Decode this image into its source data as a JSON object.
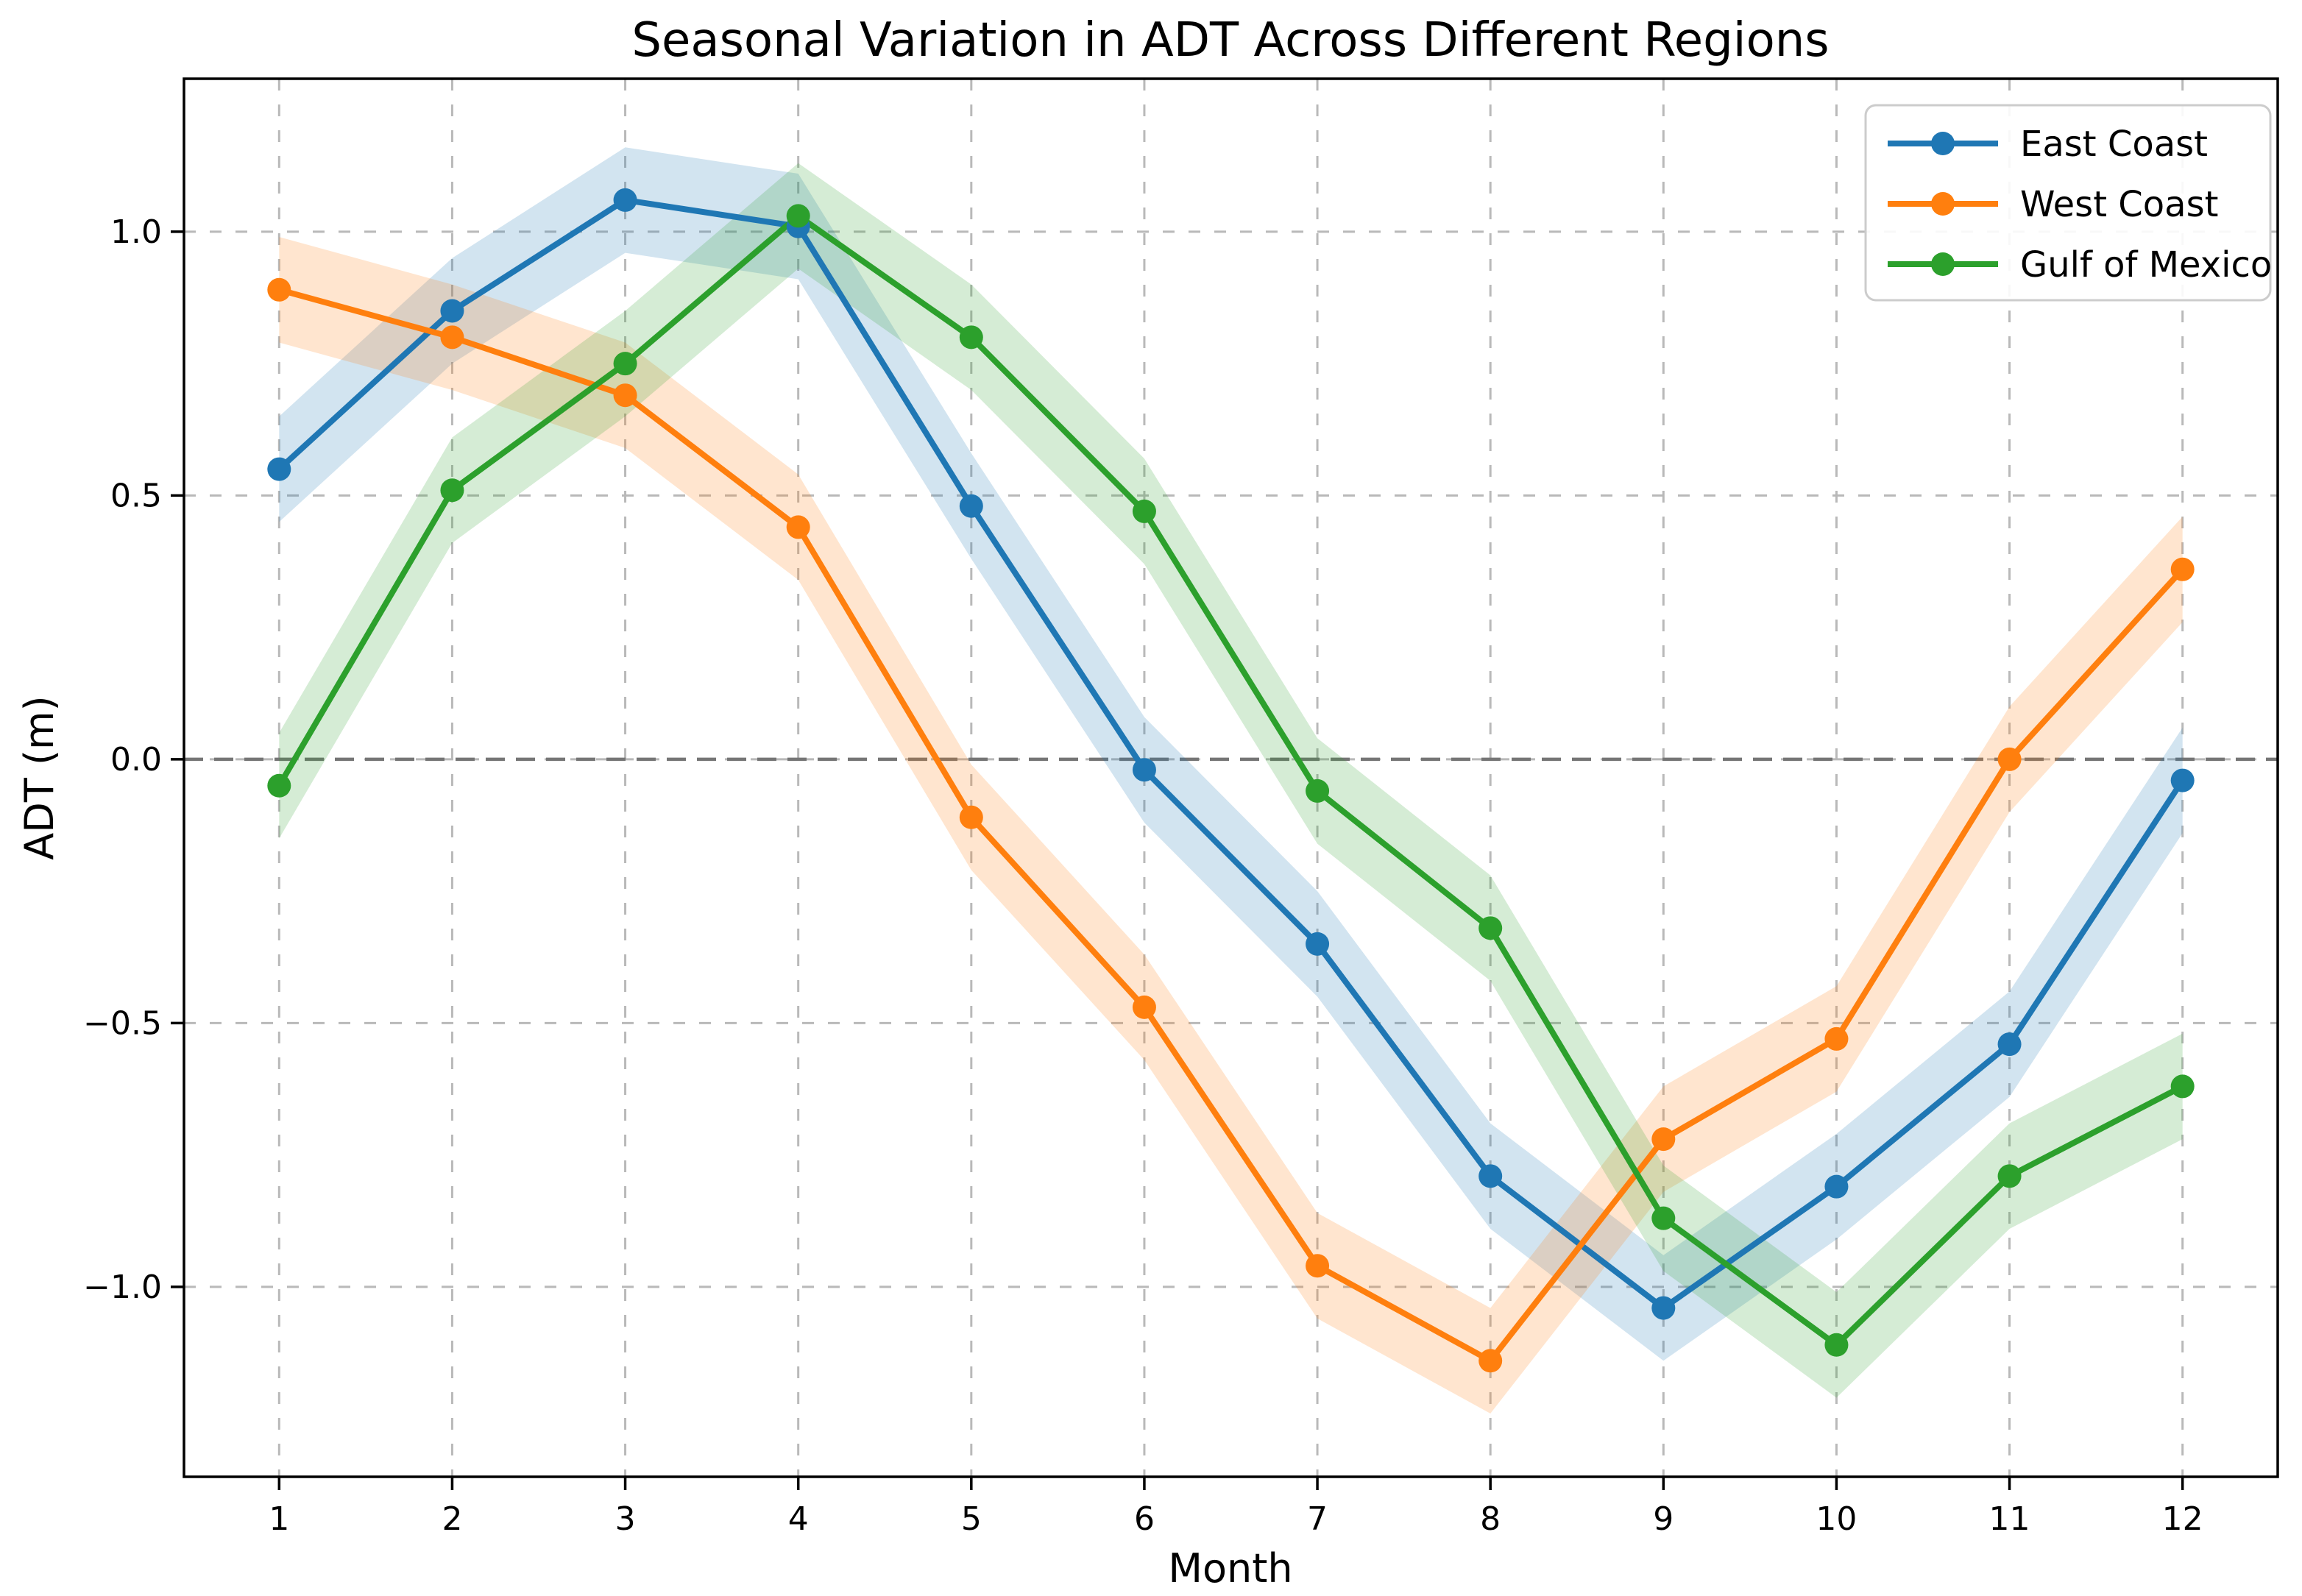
{
  "chart_data": {
    "type": "line",
    "title": "Seasonal Variation in ADT Across Different Regions",
    "xlabel": "Month",
    "ylabel": "ADT (m)",
    "x": [
      1,
      2,
      3,
      4,
      5,
      6,
      7,
      8,
      9,
      10,
      11,
      12
    ],
    "xticks": [
      1,
      2,
      3,
      4,
      5,
      6,
      7,
      8,
      9,
      10,
      11,
      12
    ],
    "yticks": [
      -1.0,
      -0.5,
      0.0,
      0.5,
      1.0
    ],
    "xlim": [
      0.45,
      12.55
    ],
    "ylim": [
      -1.36,
      1.29
    ],
    "grid": true,
    "grid_style": "dashed",
    "zero_line": true,
    "legend_position": "upper right",
    "band_halfwidth": 0.1,
    "band_alpha": 0.2,
    "series": [
      {
        "name": "East Coast",
        "color": "#1f77b4",
        "values": [
          0.55,
          0.85,
          1.06,
          1.01,
          0.48,
          -0.02,
          -0.35,
          -0.79,
          -1.04,
          -0.81,
          -0.54,
          -0.04
        ]
      },
      {
        "name": "West Coast",
        "color": "#ff7f0e",
        "values": [
          0.89,
          0.8,
          0.69,
          0.44,
          -0.11,
          -0.47,
          -0.96,
          -1.14,
          -0.72,
          -0.53,
          0.0,
          0.36
        ]
      },
      {
        "name": "Gulf of Mexico",
        "color": "#2ca02c",
        "values": [
          -0.05,
          0.51,
          0.75,
          1.03,
          0.8,
          0.47,
          -0.06,
          -0.32,
          -0.87,
          -1.11,
          -0.79,
          -0.62
        ]
      }
    ]
  }
}
